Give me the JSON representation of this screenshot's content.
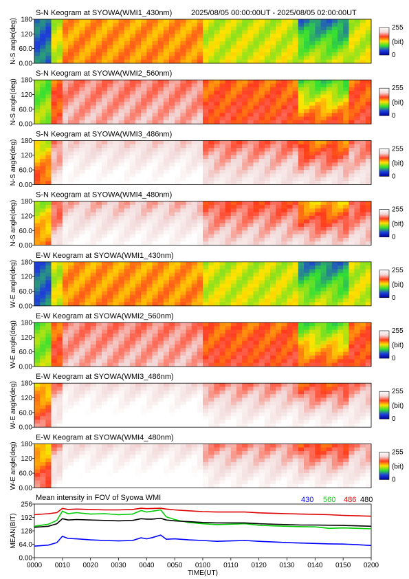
{
  "header": {
    "time_range": "2025/08/05 00:00:00UT - 2025/08/05 02:00:00UT"
  },
  "colors": {
    "colormap": [
      "#ffffff",
      "#f2d8d8",
      "#ff3b1e",
      "#ffe300",
      "#33e033",
      "#1e40d8",
      "#0000a0"
    ],
    "trace_430": "#0000ff",
    "trace_560": "#00cc00",
    "trace_486": "#dd0000",
    "trace_480": "#000000"
  },
  "chart_data": [
    {
      "type": "heatmap",
      "title": "S-N Keogram at SYOWA(WMI1_430nm)",
      "ylabel": "N-S angle(deg)",
      "y_ticks": [
        "180",
        "120",
        "60.0",
        "0.00"
      ],
      "ylim": [
        0,
        180
      ],
      "colorbar": {
        "max": "255",
        "unit": "(bit)",
        "min": "0"
      },
      "base": 0.45,
      "grad": 0.02,
      "dip": 0.22
    },
    {
      "type": "heatmap",
      "title": "S-N Keogram at SYOWA(WMI2_560nm)",
      "ylabel": "N-S angle(deg)",
      "y_ticks": [
        "180",
        "120",
        "60.0",
        "0.00"
      ],
      "ylim": [
        0,
        180
      ],
      "colorbar": {
        "max": "255",
        "unit": "(bit)",
        "min": "0"
      },
      "base": 0.62,
      "grad": 0.06,
      "dip": 0.28
    },
    {
      "type": "heatmap",
      "title": "S-N Keogram at SYOWA(WMI3_486nm)",
      "ylabel": "N-S angle(deg)",
      "y_ticks": [
        "180",
        "120",
        "60.0",
        "0.00"
      ],
      "ylim": [
        0,
        180
      ],
      "colorbar": {
        "max": "255",
        "unit": "(bit)",
        "min": "0"
      },
      "base": 0.72,
      "grad": 0.2,
      "dip": 0.12
    },
    {
      "type": "heatmap",
      "title": "S-N Keogram at SYOWA(WMI4_480nm)",
      "ylabel": "N-S angle(deg)",
      "y_ticks": [
        "180",
        "120",
        "60.0",
        "0.00"
      ],
      "ylim": [
        0,
        180
      ],
      "colorbar": {
        "max": "255",
        "unit": "(bit)",
        "min": "0"
      },
      "base": 0.68,
      "grad": 0.2,
      "dip": 0.14
    },
    {
      "type": "heatmap",
      "title": "E-W Keogram at SYOWA(WMI1_430nm)",
      "ylabel": "W-E angle(deg)",
      "y_ticks": [
        "180",
        "120",
        "60.0",
        "0.00"
      ],
      "ylim": [
        0,
        180
      ],
      "colorbar": {
        "max": "255",
        "unit": "(bit)",
        "min": "0"
      },
      "base": 0.45,
      "grad": 0.02,
      "dip": 0.22
    },
    {
      "type": "heatmap",
      "title": "E-W Keogram at SYOWA(WMI2_560nm)",
      "ylabel": "W-E angle(deg)",
      "y_ticks": [
        "180",
        "120",
        "60.0",
        "0.00"
      ],
      "ylim": [
        0,
        180
      ],
      "colorbar": {
        "max": "255",
        "unit": "(bit)",
        "min": "0"
      },
      "base": 0.62,
      "grad": 0.06,
      "dip": 0.26
    },
    {
      "type": "heatmap",
      "title": "E-W Keogram at SYOWA(WMI3_486nm)",
      "ylabel": "W-E angle(deg)",
      "y_ticks": [
        "180",
        "120",
        "60.0",
        "0.00"
      ],
      "ylim": [
        0,
        180
      ],
      "colorbar": {
        "max": "255",
        "unit": "(bit)",
        "min": "0"
      },
      "base": 0.75,
      "grad": 0.25,
      "dip": 0.1
    },
    {
      "type": "heatmap",
      "title": "E-W Keogram at SYOWA(WMI4_480nm)",
      "ylabel": "W-E angle(deg)",
      "y_ticks": [
        "180",
        "120",
        "60.0",
        "0.00"
      ],
      "ylim": [
        0,
        180
      ],
      "colorbar": {
        "max": "255",
        "unit": "(bit)",
        "min": "0"
      },
      "base": 0.75,
      "grad": 0.25,
      "dip": 0.1
    },
    {
      "type": "line",
      "title": "Mean intensity in FOV of Syowa WMI",
      "ylabel": "MEAN(BIT)",
      "xlabel": "TIME(UT)",
      "y_ticks": [
        "256",
        "192",
        "128",
        "64.0",
        "0.00"
      ],
      "ylim": [
        0,
        256
      ],
      "x_ticks": [
        "0000",
        "0010",
        "0020",
        "0030",
        "0040",
        "0050",
        "0100",
        "0110",
        "0120",
        "0130",
        "0140",
        "0150",
        "0200"
      ],
      "x": [
        0,
        5,
        8,
        10,
        12,
        15,
        20,
        25,
        30,
        35,
        38,
        40,
        42,
        45,
        47,
        50,
        52,
        55,
        60,
        65,
        70,
        75,
        80,
        85,
        90,
        95,
        100,
        105,
        110,
        115,
        120
      ],
      "series": [
        {
          "name": "430",
          "color": "#0000ff",
          "values": [
            55,
            60,
            72,
            102,
            92,
            90,
            85,
            82,
            80,
            82,
            95,
            90,
            96,
            108,
            88,
            90,
            88,
            85,
            82,
            78,
            80,
            82,
            78,
            75,
            72,
            70,
            68,
            66,
            65,
            62,
            58
          ]
        },
        {
          "name": "560",
          "color": "#00cc00",
          "values": [
            150,
            160,
            178,
            222,
            210,
            215,
            208,
            210,
            205,
            208,
            225,
            218,
            222,
            228,
            195,
            182,
            176,
            168,
            162,
            158,
            160,
            162,
            155,
            152,
            150,
            148,
            147,
            140,
            142,
            140,
            138
          ]
        },
        {
          "name": "486",
          "color": "#dd0000",
          "values": [
            205,
            210,
            215,
            235,
            230,
            232,
            230,
            228,
            228,
            230,
            236,
            234,
            235,
            236,
            232,
            228,
            226,
            224,
            220,
            218,
            218,
            218,
            214,
            212,
            210,
            208,
            207,
            205,
            202,
            200,
            198
          ]
        },
        {
          "name": "480",
          "color": "#000000",
          "values": [
            145,
            150,
            162,
            186,
            180,
            182,
            180,
            178,
            176,
            178,
            186,
            184,
            184,
            188,
            180,
            176,
            174,
            172,
            168,
            166,
            166,
            166,
            162,
            160,
            158,
            156,
            156,
            155,
            154,
            152,
            150
          ]
        }
      ]
    }
  ]
}
